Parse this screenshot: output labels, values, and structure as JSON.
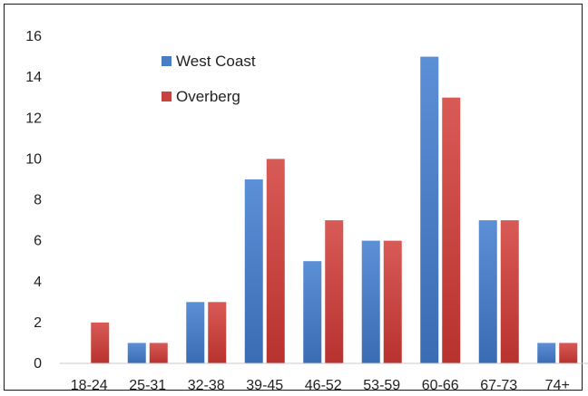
{
  "chart_data": {
    "type": "bar",
    "categories": [
      "18-24",
      "25-31",
      "32-38",
      "39-45",
      "46-52",
      "53-59",
      "60-66",
      "67-73",
      "74+"
    ],
    "series": [
      {
        "name": "West Coast",
        "values": [
          0,
          1,
          3,
          9,
          5,
          6,
          15,
          7,
          1
        ],
        "color": "#4a7cc4"
      },
      {
        "name": "Overberg",
        "values": [
          2,
          1,
          3,
          10,
          7,
          6,
          13,
          7,
          1
        ],
        "color": "#c8423f"
      }
    ],
    "title": "",
    "xlabel": "",
    "ylabel": "",
    "ylim": [
      0,
      16
    ],
    "yticks": [
      0,
      2,
      4,
      6,
      8,
      10,
      12,
      14,
      16
    ],
    "grid": false,
    "legend_position": "top-left"
  }
}
